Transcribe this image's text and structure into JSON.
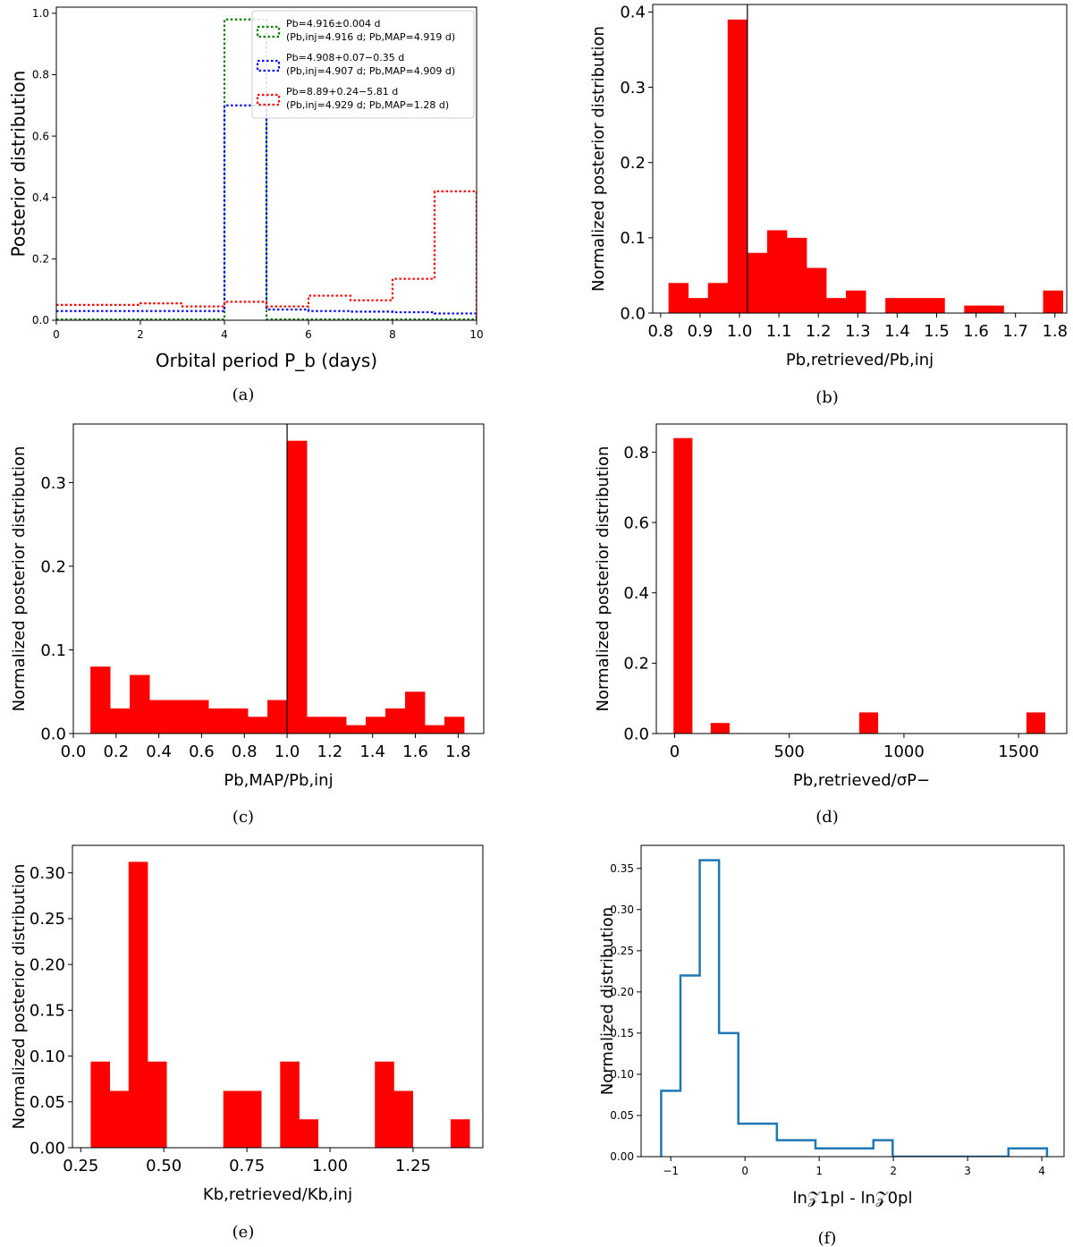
{
  "chart_data": [
    {
      "id": "a",
      "type": "line",
      "caption": "(a)",
      "xlabel": "Orbital period P_b (days)",
      "ylabel": "Posterior distribution",
      "xlim": [
        0,
        10
      ],
      "ylim": [
        0,
        1.02
      ],
      "xticks": [
        0,
        2,
        4,
        6,
        8,
        10
      ],
      "yticks": [
        0.0,
        0.2,
        0.4,
        0.6,
        0.8,
        1.0
      ],
      "legend_position": "top-right",
      "series": [
        {
          "color": "#008000",
          "legend_line1": "Pb=4.916±0.004 d",
          "legend_line2": "(Pb,inj=4.916 d; Pb,MAP=4.919 d)",
          "bin_edges": [
            0,
            1,
            2,
            3,
            4,
            5,
            6,
            7,
            8,
            9,
            10
          ],
          "values": [
            0.003,
            0.003,
            0.003,
            0.003,
            0.98,
            0.003,
            0.003,
            0.003,
            0.003,
            0.003
          ]
        },
        {
          "color": "#0000ff",
          "legend_line1": "Pb=4.908+0.07−0.35 d",
          "legend_line2": "(Pb,inj=4.907 d; Pb,MAP=4.909 d)",
          "bin_edges": [
            0,
            1,
            2,
            3,
            4,
            5,
            6,
            7,
            8,
            9,
            10
          ],
          "values": [
            0.03,
            0.03,
            0.03,
            0.03,
            0.7,
            0.035,
            0.03,
            0.028,
            0.026,
            0.022
          ]
        },
        {
          "color": "#ff0000",
          "legend_line1": "Pb=8.89+0.24−5.81 d",
          "legend_line2": "(Pb,inj=4.929 d; Pb,MAP=1.28 d)",
          "bin_edges": [
            0,
            1,
            2,
            3,
            4,
            5,
            6,
            7,
            8,
            9,
            10
          ],
          "values": [
            0.05,
            0.05,
            0.055,
            0.045,
            0.06,
            0.045,
            0.08,
            0.065,
            0.135,
            0.42
          ]
        }
      ]
    },
    {
      "id": "b",
      "type": "bar",
      "caption": "(b)",
      "xlabel": "Pb,retrieved/Pb,inj",
      "ylabel": "Normalized posterior distribution",
      "xlim": [
        0.78,
        1.83
      ],
      "ylim": [
        0,
        0.41
      ],
      "xticks": [
        0.8,
        0.9,
        1.0,
        1.1,
        1.2,
        1.3,
        1.4,
        1.5,
        1.6,
        1.7,
        1.8
      ],
      "yticks": [
        0.0,
        0.1,
        0.2,
        0.3,
        0.4
      ],
      "vline": 1.02,
      "color": "#ff0000",
      "bin_edges": [
        0.82,
        0.87,
        0.92,
        0.97,
        1.02,
        1.07,
        1.12,
        1.17,
        1.22,
        1.27,
        1.32,
        1.37,
        1.42,
        1.47,
        1.52,
        1.57,
        1.62,
        1.67,
        1.72,
        1.77,
        1.82
      ],
      "values": [
        0.04,
        0.02,
        0.04,
        0.39,
        0.08,
        0.11,
        0.1,
        0.06,
        0.02,
        0.03,
        0.0,
        0.02,
        0.02,
        0.02,
        0.0,
        0.01,
        0.01,
        0.0,
        0.0,
        0.03
      ]
    },
    {
      "id": "c",
      "type": "bar",
      "caption": "(c)",
      "xlabel": "Pb,MAP/Pb,inj",
      "ylabel": "Normalized posterior distribution",
      "xlim": [
        0.0,
        1.92
      ],
      "ylim": [
        0,
        0.37
      ],
      "xticks": [
        0.0,
        0.2,
        0.4,
        0.6,
        0.8,
        1.0,
        1.2,
        1.4,
        1.6,
        1.8
      ],
      "yticks": [
        0.0,
        0.1,
        0.2,
        0.3
      ],
      "vline": 1.0,
      "color": "#ff0000",
      "bin_edges": [
        0.08,
        0.172,
        0.264,
        0.356,
        0.448,
        0.54,
        0.632,
        0.724,
        0.816,
        0.908,
        1.0,
        1.092,
        1.184,
        1.276,
        1.368,
        1.46,
        1.552,
        1.644,
        1.736,
        1.828
      ],
      "values": [
        0.08,
        0.03,
        0.07,
        0.04,
        0.04,
        0.04,
        0.03,
        0.03,
        0.02,
        0.04,
        0.35,
        0.02,
        0.02,
        0.01,
        0.02,
        0.03,
        0.05,
        0.01,
        0.02,
        0.05
      ]
    },
    {
      "id": "d",
      "type": "bar",
      "caption": "(d)",
      "xlabel": "Pb,retrieved/σP−",
      "ylabel": "Normalized posterior distribution",
      "xlim": [
        -80,
        1710
      ],
      "ylim": [
        0,
        0.88
      ],
      "xticks": [
        0,
        500,
        1000,
        1500
      ],
      "yticks": [
        0.0,
        0.2,
        0.4,
        0.6,
        0.8
      ],
      "color": "#ff0000",
      "bin_edges": [
        -5,
        76,
        157,
        238,
        319,
        400,
        481,
        562,
        643,
        724,
        805,
        886,
        967,
        1048,
        1129,
        1210,
        1291,
        1372,
        1453,
        1534,
        1615
      ],
      "values": [
        0.84,
        0.0,
        0.03,
        0.0,
        0.0,
        0.0,
        0.0,
        0.0,
        0.0,
        0.0,
        0.06,
        0.0,
        0.0,
        0.0,
        0.0,
        0.0,
        0.0,
        0.0,
        0.0,
        0.06
      ]
    },
    {
      "id": "e",
      "type": "bar",
      "caption": "(e)",
      "xlabel": "Kb,retrieved/Kb,inj",
      "ylabel": "Normalized posterior distribution",
      "xlim": [
        0.225,
        1.46
      ],
      "ylim": [
        0,
        0.33
      ],
      "xticks": [
        0.25,
        0.5,
        0.75,
        1.0,
        1.25
      ],
      "xtick_labels": [
        "0.25",
        "0.50",
        "0.75",
        "1.00",
        "1.25"
      ],
      "yticks": [
        0.0,
        0.05,
        0.1,
        0.15,
        0.2,
        0.25,
        0.3
      ],
      "ytick_labels": [
        "0.00",
        "0.05",
        "0.10",
        "0.15",
        "0.20",
        "0.25",
        "0.30"
      ],
      "color": "#ff0000",
      "bin_edges": [
        0.28,
        0.337,
        0.394,
        0.451,
        0.508,
        0.565,
        0.622,
        0.679,
        0.736,
        0.793,
        0.85,
        0.907,
        0.964,
        1.021,
        1.078,
        1.135,
        1.192,
        1.249,
        1.306,
        1.363,
        1.42
      ],
      "values": [
        0.094,
        0.062,
        0.312,
        0.094,
        0.0,
        0.0,
        0.0,
        0.062,
        0.062,
        0.0,
        0.094,
        0.031,
        0.0,
        0.0,
        0.0,
        0.094,
        0.062,
        0.0,
        0.0,
        0.031
      ]
    },
    {
      "id": "f",
      "type": "line",
      "caption": "(f)",
      "xlabel": "ln𝒵1pl - ln𝒵0pl",
      "ylabel": "Normalized distribution",
      "xlim": [
        -1.4,
        4.3
      ],
      "ylim": [
        0,
        0.378
      ],
      "xticks": [
        -1,
        0,
        1,
        2,
        3,
        4
      ],
      "xtick_labels": [
        "−1",
        "0",
        "1",
        "2",
        "3",
        "4"
      ],
      "yticks": [
        0.0,
        0.05,
        0.1,
        0.15,
        0.2,
        0.25,
        0.3,
        0.35
      ],
      "ytick_labels": [
        "0.00",
        "0.05",
        "0.10",
        "0.15",
        "0.20",
        "0.25",
        "0.30",
        "0.35"
      ],
      "color": "#1f77b4",
      "bin_edges": [
        -1.13,
        -0.87,
        -0.61,
        -0.35,
        -0.09,
        0.17,
        0.43,
        0.69,
        0.95,
        1.21,
        1.47,
        1.73,
        1.99,
        2.25,
        2.51,
        2.77,
        3.03,
        3.29,
        3.55,
        3.81,
        4.07
      ],
      "values": [
        0.08,
        0.22,
        0.36,
        0.15,
        0.04,
        0.04,
        0.02,
        0.02,
        0.01,
        0.01,
        0.01,
        0.02,
        0.0,
        0.0,
        0.0,
        0.0,
        0.0,
        0.0,
        0.01,
        0.01
      ]
    }
  ]
}
